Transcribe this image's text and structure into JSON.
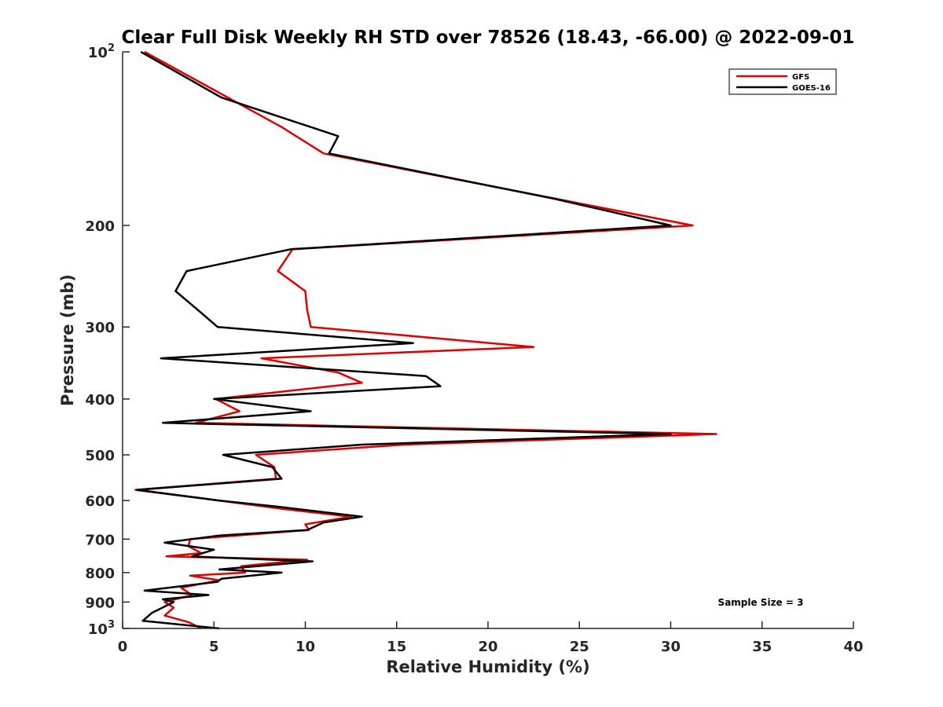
{
  "chart_data": {
    "type": "line",
    "title": "Clear Full Disk Weekly RH STD over 78526 (18.43, -66.00) @ 2022-09-01",
    "xlabel": "Relative Humidity (%)",
    "ylabel": "Pressure (mb)",
    "xlim": [
      0,
      40
    ],
    "ylim": [
      100,
      1000
    ],
    "y_scale": "log",
    "y_reversed": true,
    "x_ticks": [
      0,
      5,
      10,
      15,
      20,
      25,
      30,
      35,
      40
    ],
    "y_ticks": [
      {
        "value": 100,
        "base": "10",
        "exp": "2"
      },
      {
        "value": 200,
        "label": "200"
      },
      {
        "value": 300,
        "label": "300"
      },
      {
        "value": 400,
        "label": "400"
      },
      {
        "value": 500,
        "label": "500"
      },
      {
        "value": 600,
        "label": "600"
      },
      {
        "value": 700,
        "label": "700"
      },
      {
        "value": 800,
        "label": "800"
      },
      {
        "value": 900,
        "label": "900"
      },
      {
        "value": 1000,
        "base": "10",
        "exp": "3"
      }
    ],
    "grid": false,
    "legend": {
      "position": "top-right",
      "entries": [
        "GFS",
        "GOES-16"
      ]
    },
    "annotation": "Sample Size = 3",
    "series": [
      {
        "name": "GFS",
        "color": "#e00000",
        "points": [
          [
            1.2,
            100
          ],
          [
            4.7,
            115
          ],
          [
            8.7,
            135
          ],
          [
            11.0,
            150
          ],
          [
            23.8,
            180
          ],
          [
            31.2,
            200
          ],
          [
            9.3,
            220
          ],
          [
            8.5,
            240
          ],
          [
            10.0,
            260
          ],
          [
            10.1,
            280
          ],
          [
            10.3,
            300
          ],
          [
            22.5,
            325
          ],
          [
            7.6,
            340
          ],
          [
            11.8,
            360
          ],
          [
            13.1,
            375
          ],
          [
            5.1,
            400
          ],
          [
            6.4,
            420
          ],
          [
            4.0,
            440
          ],
          [
            32.5,
            460
          ],
          [
            15.4,
            480
          ],
          [
            7.3,
            500
          ],
          [
            8.3,
            525
          ],
          [
            8.4,
            550
          ],
          [
            0.7,
            575
          ],
          [
            5.3,
            600
          ],
          [
            8.7,
            620
          ],
          [
            12.5,
            640
          ],
          [
            10.0,
            660
          ],
          [
            10.2,
            675
          ],
          [
            3.7,
            700
          ],
          [
            3.6,
            720
          ],
          [
            4.3,
            740
          ],
          [
            2.4,
            750
          ],
          [
            10.1,
            760
          ],
          [
            6.5,
            780
          ],
          [
            6.7,
            800
          ],
          [
            3.7,
            810
          ],
          [
            5.3,
            825
          ],
          [
            3.2,
            850
          ],
          [
            3.8,
            875
          ],
          [
            2.3,
            900
          ],
          [
            2.8,
            920
          ],
          [
            2.3,
            950
          ],
          [
            3.6,
            975
          ],
          [
            4.3,
            1000
          ]
        ]
      },
      {
        "name": "GOES-16",
        "color": "#000000",
        "points": [
          [
            1.0,
            100
          ],
          [
            5.4,
            120
          ],
          [
            11.8,
            140
          ],
          [
            11.3,
            150
          ],
          [
            23.7,
            180
          ],
          [
            30.0,
            200
          ],
          [
            9.2,
            220
          ],
          [
            3.5,
            240
          ],
          [
            2.9,
            260
          ],
          [
            4.1,
            280
          ],
          [
            5.2,
            300
          ],
          [
            15.9,
            320
          ],
          [
            2.1,
            340
          ],
          [
            16.6,
            365
          ],
          [
            17.4,
            380
          ],
          [
            5.0,
            400
          ],
          [
            10.3,
            420
          ],
          [
            2.2,
            440
          ],
          [
            30.0,
            460
          ],
          [
            13.1,
            480
          ],
          [
            5.5,
            500
          ],
          [
            8.2,
            525
          ],
          [
            8.7,
            550
          ],
          [
            0.8,
            575
          ],
          [
            5.3,
            600
          ],
          [
            8.5,
            615
          ],
          [
            13.1,
            640
          ],
          [
            11.0,
            655
          ],
          [
            10.1,
            675
          ],
          [
            5.3,
            690
          ],
          [
            2.3,
            710
          ],
          [
            5.0,
            730
          ],
          [
            3.8,
            750
          ],
          [
            10.4,
            765
          ],
          [
            5.3,
            790
          ],
          [
            8.7,
            800
          ],
          [
            5.4,
            820
          ],
          [
            5.2,
            830
          ],
          [
            1.2,
            860
          ],
          [
            4.7,
            875
          ],
          [
            2.2,
            890
          ],
          [
            2.8,
            900
          ],
          [
            1.6,
            940
          ],
          [
            1.1,
            970
          ],
          [
            5.3,
            1000
          ]
        ]
      }
    ]
  }
}
